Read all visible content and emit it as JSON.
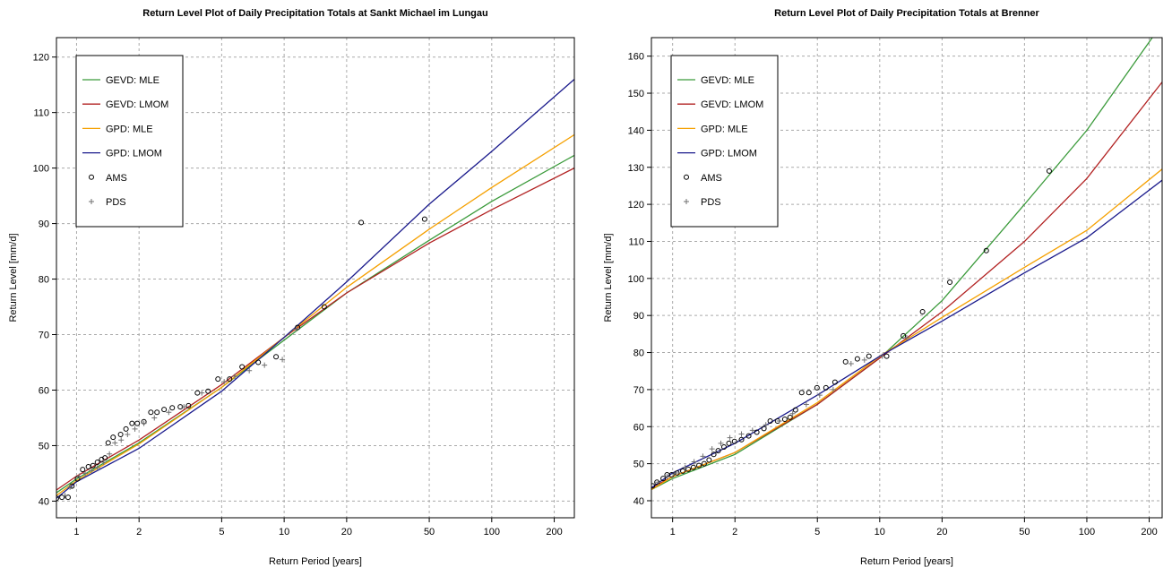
{
  "chart_data": [
    {
      "type": "line",
      "title": "Return Level Plot of Daily Precipitation Totals at Sankt Michael im Lungau",
      "x_label": "Return Period [years]",
      "y_label": "Return Level [mm/d]",
      "xlog": true,
      "grid": true,
      "legend": "top-left",
      "xlim": [
        0.8,
        250
      ],
      "ylim": [
        37,
        123.5
      ],
      "xticks": [
        1,
        2,
        5,
        10,
        20,
        50,
        100,
        200
      ],
      "yticks": [
        40,
        50,
        60,
        70,
        80,
        90,
        100,
        110,
        120
      ],
      "series": [
        {
          "name": "GEVD: MLE",
          "color": "#3a9a3a",
          "x": [
            0.8,
            1,
            2,
            5,
            10,
            20,
            50,
            100,
            250
          ],
          "values": [
            41.5,
            44,
            50.5,
            60.5,
            69,
            77.5,
            87,
            94,
            102.3
          ]
        },
        {
          "name": "GEVD: LMOM",
          "color": "#b22222",
          "x": [
            0.8,
            1,
            2,
            5,
            10,
            20,
            50,
            100,
            250
          ],
          "values": [
            42,
            44.5,
            51,
            61,
            69.5,
            77.5,
            86.5,
            92.5,
            100
          ]
        },
        {
          "name": "GPD: MLE",
          "color": "#f5a000",
          "x": [
            0.8,
            1,
            2,
            5,
            10,
            20,
            50,
            100,
            250
          ],
          "values": [
            41,
            43.7,
            50.3,
            60.5,
            69.5,
            78.5,
            89,
            96.5,
            106
          ]
        },
        {
          "name": "GPD: LMOM",
          "color": "#1a1a8c",
          "x": [
            0.8,
            1,
            2,
            5,
            10,
            20,
            50,
            100,
            250
          ],
          "values": [
            40.5,
            43.5,
            49.5,
            59.8,
            69.5,
            79.5,
            93.5,
            103,
            116
          ]
        },
        {
          "name": "AMS",
          "color": "#000000",
          "marker": "circle",
          "x": [
            0.8,
            0.85,
            0.91,
            0.95,
            1.01,
            1.07,
            1.14,
            1.2,
            1.26,
            1.32,
            1.37,
            1.42,
            1.5,
            1.63,
            1.73,
            1.85,
            1.96,
            2.11,
            2.28,
            2.44,
            2.64,
            2.89,
            3.16,
            3.46,
            3.82,
            4.3,
            4.8,
            5.46,
            6.27,
            7.5,
            9.14,
            11.6,
            15.6,
            23.5,
            47.5
          ],
          "values": [
            40.5,
            40.7,
            40.7,
            42.7,
            44,
            45.7,
            46.2,
            46.4,
            47,
            47.5,
            47.8,
            50.5,
            51.5,
            52,
            53,
            54,
            54,
            54.3,
            56,
            56,
            56.5,
            56.8,
            57,
            57.2,
            59.5,
            59.8,
            62,
            62,
            64.2,
            65,
            66,
            71.3,
            75,
            90.2,
            90.8
          ]
        },
        {
          "name": "PDS",
          "color": "#707070",
          "marker": "plus",
          "x": [
            0.88,
            0.93,
            1.03,
            1.1,
            1.18,
            1.26,
            1.35,
            1.44,
            1.53,
            1.64,
            1.76,
            1.91,
            2.11,
            2.37,
            2.78,
            3.29,
            4.01,
            5.14,
            5.79,
            6.79,
            8.04,
            9.8,
            11.4
          ],
          "values": [
            41,
            42.5,
            44.5,
            45,
            45.5,
            46,
            47,
            48.5,
            50.5,
            51,
            52,
            53,
            54,
            55,
            56,
            57,
            59.5,
            61.5,
            62.5,
            63.5,
            64.5,
            65.5,
            71
          ]
        }
      ]
    },
    {
      "type": "line",
      "title": "Return Level Plot of Daily Precipitation Totals at Brenner",
      "x_label": "Return Period [years]",
      "y_label": "Return Level [mm/d]",
      "xlog": true,
      "grid": true,
      "legend": "top-left",
      "xlim": [
        0.79,
        231
      ],
      "ylim": [
        35.4,
        165
      ],
      "xticks": [
        1,
        2,
        5,
        10,
        20,
        50,
        100,
        200
      ],
      "yticks": [
        40,
        50,
        60,
        70,
        80,
        90,
        100,
        110,
        120,
        130,
        140,
        150,
        160
      ],
      "series": [
        {
          "name": "GEVD: MLE",
          "color": "#3a9a3a",
          "x": [
            0.79,
            1,
            2,
            5,
            10,
            20,
            50,
            100,
            207
          ],
          "values": [
            43,
            46,
            52.5,
            66,
            78.5,
            94,
            120,
            140,
            165
          ]
        },
        {
          "name": "GEVD: LMOM",
          "color": "#b22222",
          "x": [
            0.79,
            1,
            2,
            5,
            10,
            20,
            50,
            100,
            231
          ],
          "values": [
            43.5,
            46.5,
            53,
            66,
            78.5,
            91,
            110,
            127,
            153
          ]
        },
        {
          "name": "GPD: MLE",
          "color": "#f5a000",
          "x": [
            0.79,
            1,
            2,
            5,
            10,
            20,
            50,
            100,
            231
          ],
          "values": [
            43,
            46.5,
            53,
            66.5,
            79,
            89.5,
            103,
            113,
            129.5
          ]
        },
        {
          "name": "GPD: LMOM",
          "color": "#1a1a8c",
          "x": [
            0.79,
            1,
            2,
            5,
            10,
            20,
            50,
            100,
            231
          ],
          "values": [
            43.5,
            47.5,
            55.5,
            68.5,
            79,
            88.5,
            101.5,
            111,
            126.5
          ]
        },
        {
          "name": "AMS",
          "color": "#000000",
          "marker": "circle",
          "x": [
            0.8,
            0.84,
            0.9,
            0.94,
            0.99,
            1.05,
            1.12,
            1.19,
            1.26,
            1.34,
            1.42,
            1.5,
            1.58,
            1.66,
            1.77,
            1.87,
            1.99,
            2.15,
            2.33,
            2.55,
            2.76,
            2.96,
            3.21,
            3.48,
            3.69,
            3.92,
            4.2,
            4.55,
            4.98,
            5.5,
            6.08,
            6.84,
            7.8,
            8.87,
            10.8,
            13,
            16.1,
            21.8,
            32.7,
            65.8
          ],
          "values": [
            44,
            45,
            46,
            47,
            47,
            47.5,
            48,
            48.5,
            49,
            49.5,
            50,
            51,
            52.5,
            53.5,
            54.5,
            55.5,
            56,
            56.5,
            57.5,
            58.5,
            59.5,
            61.5,
            61.5,
            62,
            62.5,
            64.5,
            69.2,
            69.2,
            70.5,
            70.5,
            72,
            77.5,
            78.3,
            79,
            79,
            84.5,
            91,
            99,
            107.5,
            129
          ]
        },
        {
          "name": "PDS",
          "color": "#707070",
          "marker": "plus",
          "x": [
            0.85,
            0.94,
            1.04,
            1.15,
            1.27,
            1.4,
            1.55,
            1.71,
            1.89,
            2.15,
            2.43,
            2.82,
            3.27,
            3.8,
            4.42,
            5.13,
            5.96,
            7.27,
            8.44,
            10.3,
            13.5
          ],
          "values": [
            45,
            46.5,
            47.5,
            49,
            50.5,
            52,
            54,
            55.5,
            57,
            58,
            59,
            60.5,
            61.5,
            63.5,
            66,
            68.5,
            70,
            77,
            78,
            79,
            84
          ]
        }
      ]
    }
  ]
}
